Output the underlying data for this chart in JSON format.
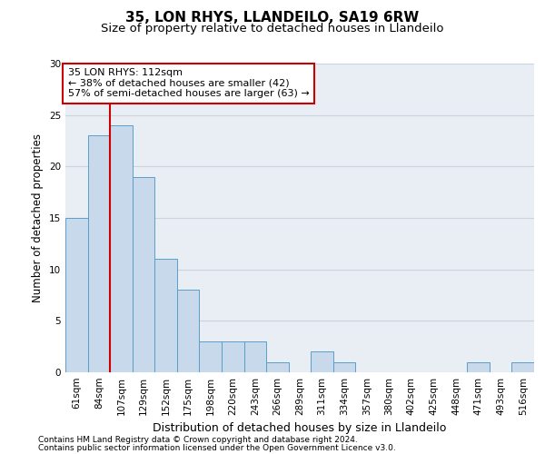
{
  "title1": "35, LON RHYS, LLANDEILO, SA19 6RW",
  "title2": "Size of property relative to detached houses in Llandeilo",
  "xlabel": "Distribution of detached houses by size in Llandeilo",
  "ylabel": "Number of detached properties",
  "categories": [
    "61sqm",
    "84sqm",
    "107sqm",
    "129sqm",
    "152sqm",
    "175sqm",
    "198sqm",
    "220sqm",
    "243sqm",
    "266sqm",
    "289sqm",
    "311sqm",
    "334sqm",
    "357sqm",
    "380sqm",
    "402sqm",
    "425sqm",
    "448sqm",
    "471sqm",
    "493sqm",
    "516sqm"
  ],
  "values": [
    15,
    23,
    24,
    19,
    11,
    8,
    3,
    3,
    3,
    1,
    0,
    2,
    1,
    0,
    0,
    0,
    0,
    0,
    1,
    0,
    1
  ],
  "bar_color": "#c8d9eb",
  "bar_edge_color": "#5a9ec9",
  "vline_x_index": 2,
  "vline_color": "#cc0000",
  "annotation_line1": "35 LON RHYS: 112sqm",
  "annotation_line2": "← 38% of detached houses are smaller (42)",
  "annotation_line3": "57% of semi-detached houses are larger (63) →",
  "annotation_box_color": "#ffffff",
  "annotation_box_edge": "#cc0000",
  "ylim": [
    0,
    30
  ],
  "yticks": [
    0,
    5,
    10,
    15,
    20,
    25,
    30
  ],
  "grid_color": "#c8d4e0",
  "background_color": "#e8eef4",
  "footer1": "Contains HM Land Registry data © Crown copyright and database right 2024.",
  "footer2": "Contains public sector information licensed under the Open Government Licence v3.0.",
  "title1_fontsize": 11,
  "title2_fontsize": 9.5,
  "xlabel_fontsize": 9,
  "ylabel_fontsize": 8.5,
  "tick_fontsize": 7.5,
  "annotation_fontsize": 8,
  "footer_fontsize": 6.5
}
